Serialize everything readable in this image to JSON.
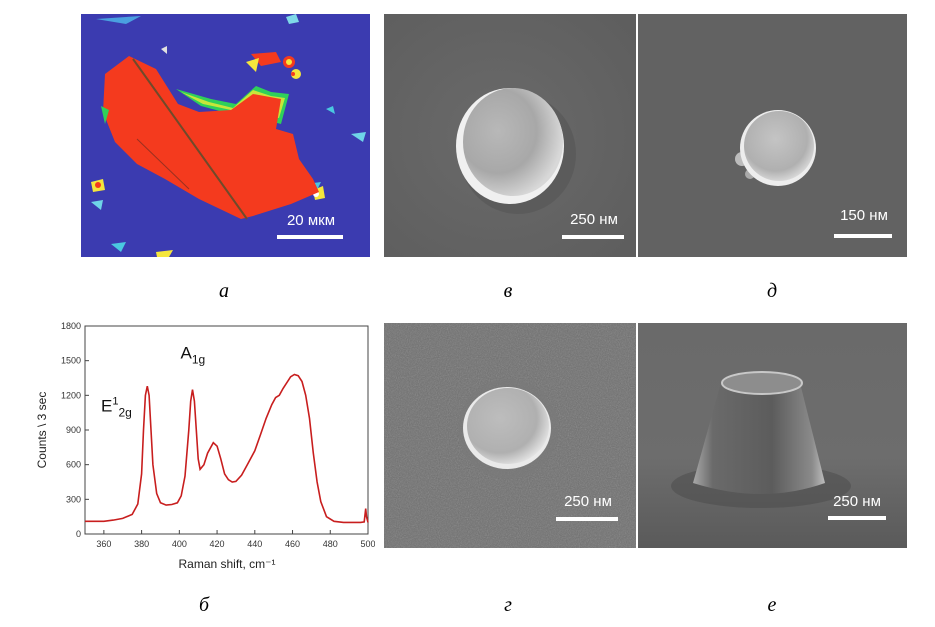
{
  "panels": {
    "a": {
      "caption": "а",
      "scale_label": "20 мкм"
    },
    "v": {
      "caption": "в",
      "scale_label": "250 нм"
    },
    "d": {
      "caption": "д",
      "scale_label": "150 нм"
    },
    "b": {
      "caption": "б"
    },
    "g": {
      "caption": "г",
      "scale_label": "250 нм"
    },
    "e": {
      "caption": "е",
      "scale_label": "250 нм"
    }
  },
  "colors": {
    "map_background": "#3b3bb0",
    "flake": "#f43a1e",
    "raman_line": "#c81e1e",
    "sem_gray": "#6b6b6b"
  },
  "chart_data": {
    "type": "line",
    "title": "",
    "xlabel": "Raman shift, cm⁻¹",
    "ylabel": "Counts \\ 3 sec",
    "xlim": [
      350,
      500
    ],
    "ylim": [
      0,
      1800
    ],
    "xticks": [
      360,
      380,
      400,
      420,
      440,
      460,
      480,
      500
    ],
    "yticks": [
      0,
      300,
      600,
      900,
      1200,
      1500,
      1800
    ],
    "annotations": [
      {
        "base": "E",
        "sup": "1",
        "sub": "2g",
        "x": 383
      },
      {
        "base": "A",
        "sup": "",
        "sub": "1g",
        "x": 407
      }
    ],
    "grid": false,
    "series": [
      {
        "x": [
          350,
          360,
          365,
          370,
          375,
          378,
          380,
          381,
          382,
          383,
          384,
          385,
          386,
          388,
          390,
          393,
          396,
          399,
          401,
          403,
          405,
          406,
          407,
          408,
          409,
          410,
          411,
          413,
          415,
          418,
          420,
          422,
          424,
          426,
          428,
          430,
          433,
          436,
          440,
          443,
          446,
          449,
          451,
          453,
          455,
          457,
          459,
          461,
          463,
          465,
          467,
          469,
          471,
          473,
          475,
          478,
          482,
          487,
          492,
          496,
          498,
          498.8,
          499.2,
          500
        ],
        "values": [
          110,
          110,
          120,
          135,
          170,
          260,
          520,
          900,
          1200,
          1280,
          1200,
          900,
          600,
          350,
          270,
          250,
          255,
          270,
          330,
          500,
          900,
          1150,
          1250,
          1150,
          900,
          650,
          560,
          600,
          700,
          790,
          760,
          650,
          520,
          470,
          450,
          455,
          510,
          600,
          720,
          860,
          1000,
          1120,
          1180,
          1200,
          1260,
          1310,
          1360,
          1380,
          1370,
          1320,
          1200,
          1000,
          700,
          450,
          280,
          150,
          110,
          100,
          100,
          100,
          105,
          220,
          150,
          100
        ]
      }
    ]
  }
}
